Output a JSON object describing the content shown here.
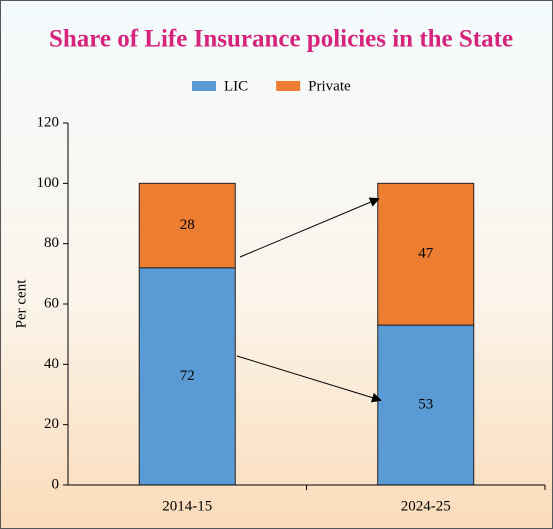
{
  "chart_data": {
    "type": "bar",
    "stacked": true,
    "title": "Share of Life Insurance policies in the State",
    "ylabel": "Per cent",
    "categories": [
      "2014-15",
      "2024-25"
    ],
    "series": [
      {
        "name": "LIC",
        "color": "#5b9bd5",
        "values": [
          72,
          53
        ]
      },
      {
        "name": "Private",
        "color": "#ed7d31",
        "values": [
          28,
          47
        ]
      }
    ],
    "ylim": [
      0,
      120
    ],
    "yticks": [
      0,
      20,
      40,
      60,
      80,
      100,
      120
    ],
    "legend": "top"
  }
}
